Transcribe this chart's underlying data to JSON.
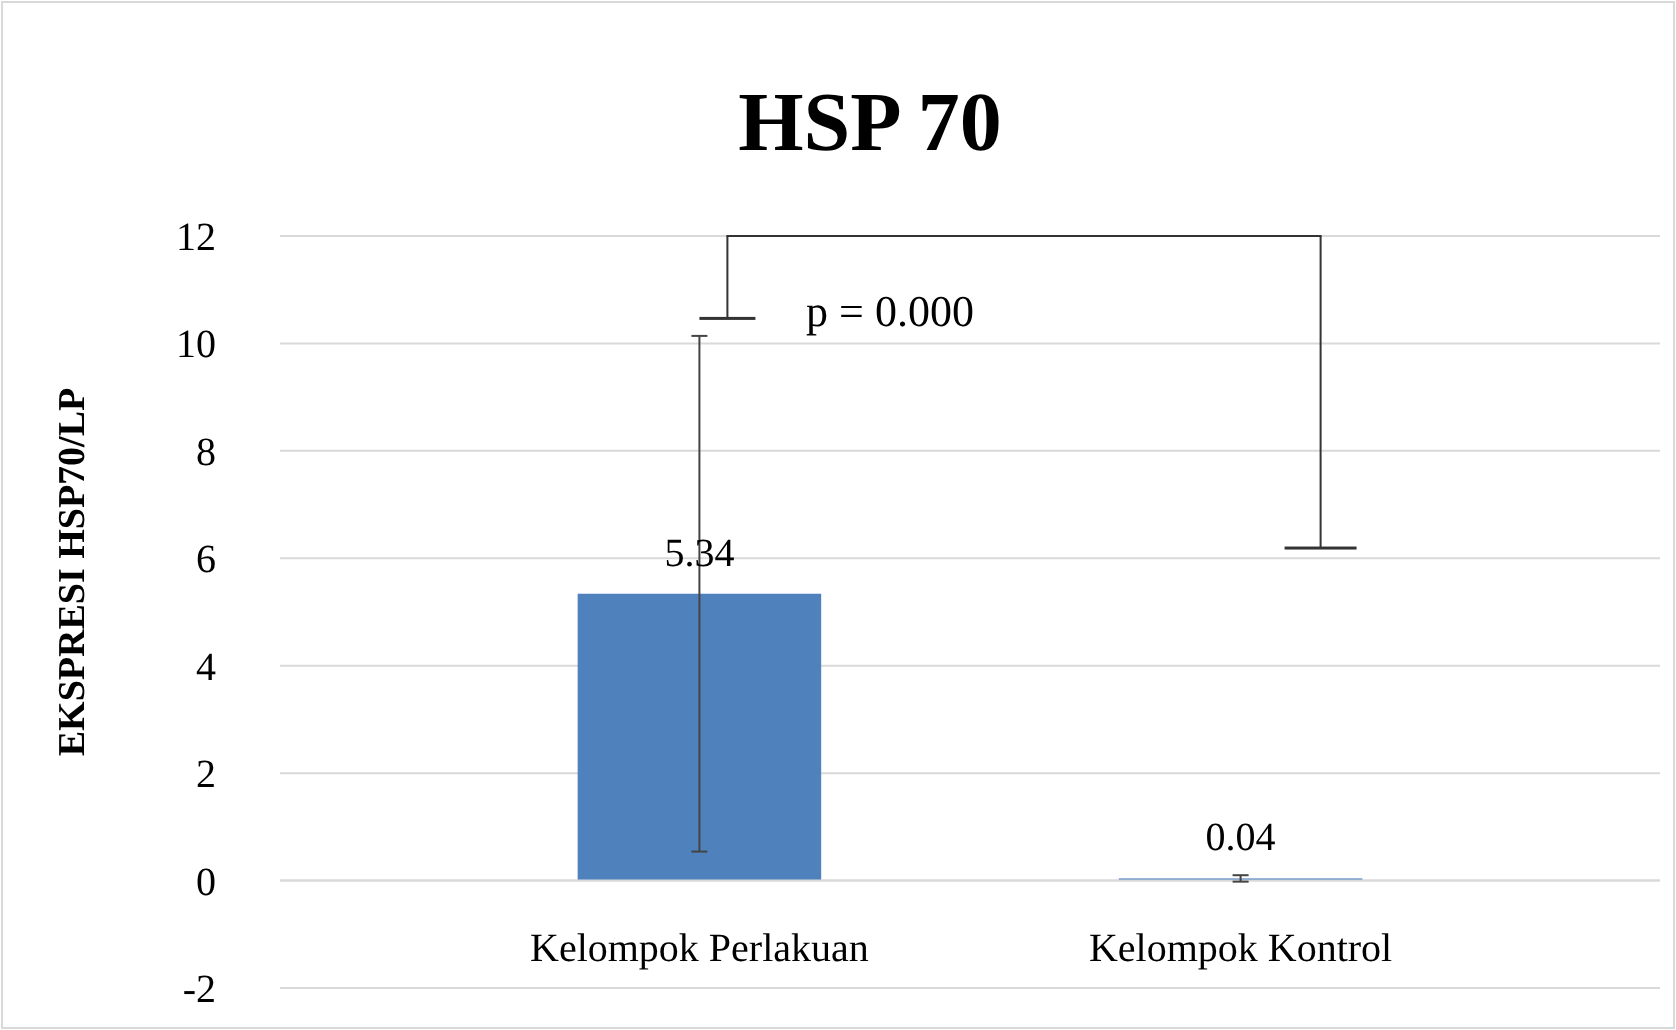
{
  "chart_data": {
    "type": "bar",
    "title": "HSP 70",
    "ylabel": "EKSPRESI HSP70/LP",
    "categories": [
      "Kelompok Perlakuan",
      "Kelompok Kontrol"
    ],
    "values": [
      5.34,
      0.04
    ],
    "errors": [
      4.8,
      0.06
    ],
    "color": "#4f81bd",
    "data_labels": true,
    "ylim": [
      -2,
      12
    ],
    "yticks": [
      -2,
      0,
      2,
      4,
      6,
      8,
      10,
      12
    ],
    "grid": "y",
    "annotations": [
      "p = 0.000"
    ]
  }
}
